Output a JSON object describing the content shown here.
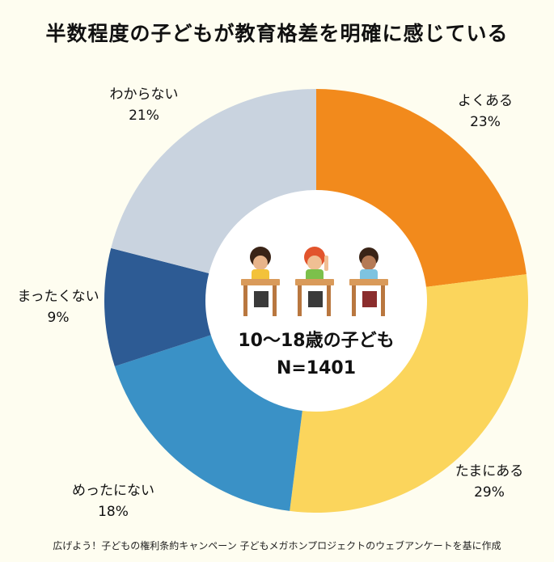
{
  "title": "半数程度の子どもが教育格差を明確に感じている",
  "footer": "広げよう！子どもの権利条約キャンペーン 子どもメガホンプロジェクトのウェブアンケートを基に作成",
  "center": {
    "line1": "10〜18歳の子ども",
    "line2": "N=1401"
  },
  "chart_data": {
    "type": "pie",
    "title": "半数程度の子どもが教育格差を明確に感じている",
    "categories": [
      "よくある",
      "たまにある",
      "めったにない",
      "まったくない",
      "わからない"
    ],
    "values": [
      23,
      29,
      18,
      9,
      21
    ],
    "value_labels": [
      "23%",
      "29%",
      "18%",
      "9%",
      "21%"
    ],
    "colors": [
      "#f28a1c",
      "#fbd55c",
      "#3a91c6",
      "#2d5b94",
      "#c9d3df"
    ]
  }
}
